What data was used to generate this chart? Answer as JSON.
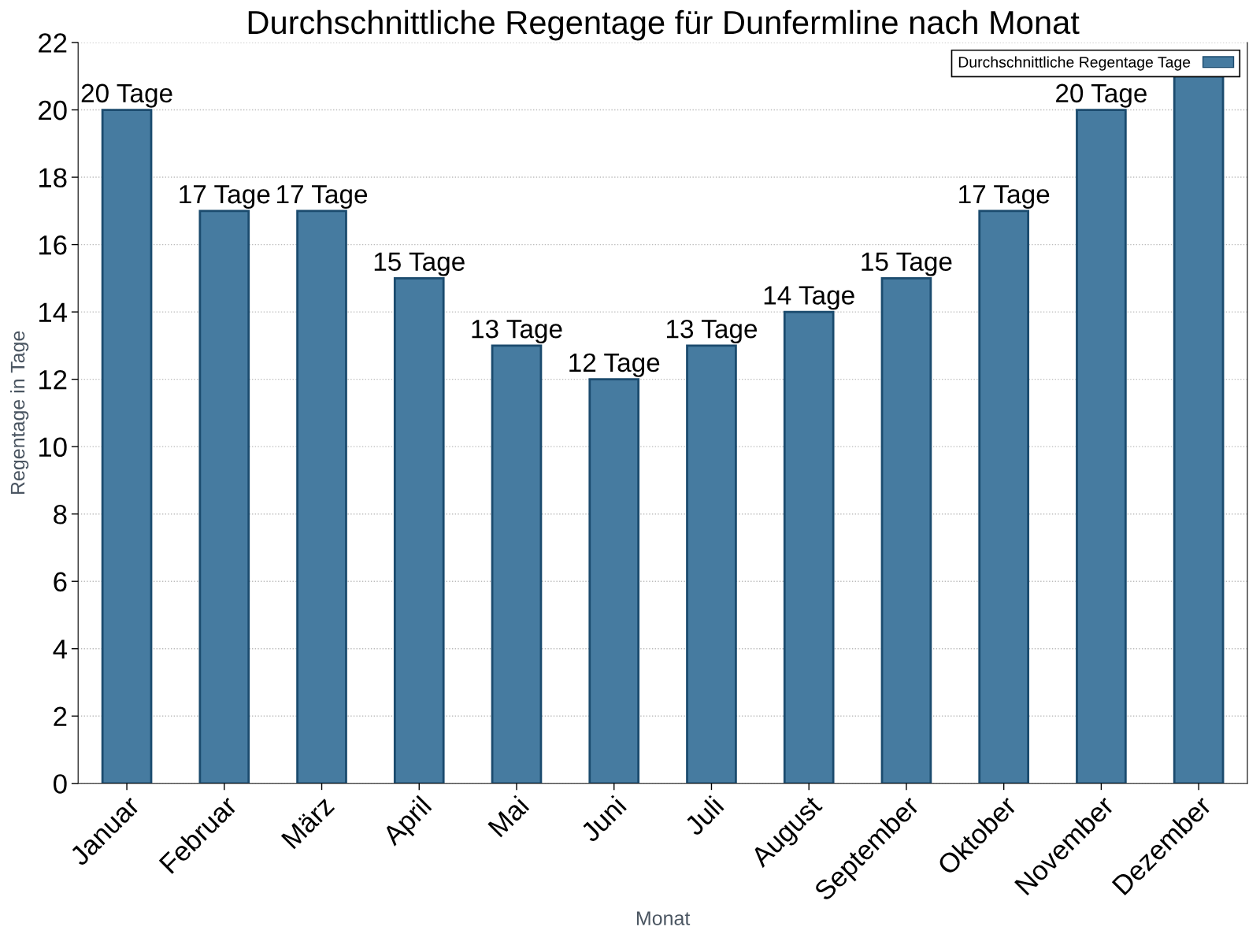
{
  "chart_data": {
    "type": "bar",
    "title": "Durchschnittliche Regentage für Dunfermline nach Monat",
    "xlabel": "Monat",
    "ylabel": "Regentage in Tage",
    "categories": [
      "Januar",
      "Februar",
      "März",
      "April",
      "Mai",
      "Juni",
      "Juli",
      "August",
      "September",
      "Oktober",
      "November",
      "Dezember"
    ],
    "series": [
      {
        "name": "Durchschnittliche Regentage Tage",
        "color": "#467ba0",
        "values": [
          20,
          17,
          17,
          15,
          13,
          12,
          13,
          14,
          15,
          17,
          20,
          21
        ],
        "value_labels": [
          "20 Tage",
          "17 Tage",
          "17 Tage",
          "15 Tage",
          "13 Tage",
          "12 Tage",
          "13 Tage",
          "14 Tage",
          "15 Tage",
          "17 Tage",
          "20 Tage",
          null
        ]
      }
    ],
    "ylim": [
      0,
      22
    ],
    "yticks": [
      0,
      2,
      4,
      6,
      8,
      10,
      12,
      14,
      16,
      18,
      20,
      22
    ],
    "grid": "y",
    "legend": "top right"
  }
}
